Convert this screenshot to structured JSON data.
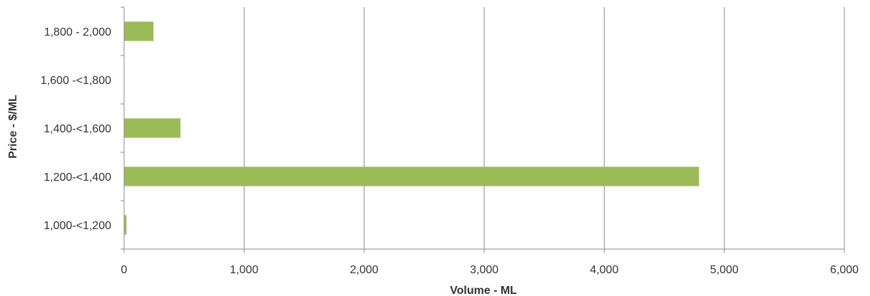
{
  "chart_data": {
    "type": "bar",
    "orientation": "horizontal",
    "title": "",
    "xlabel": "Volume - ML",
    "ylabel": "Price - $/ML",
    "categories": [
      "1,000-<1,200",
      "1,200-<1,400",
      "1,400-<1,600",
      "1,600 -<1,800",
      "1,800 - 2,000"
    ],
    "values": [
      20,
      4790,
      470,
      0,
      245
    ],
    "xlim": [
      0,
      6000
    ],
    "xticks": [
      0,
      1000,
      2000,
      3000,
      4000,
      5000,
      6000
    ],
    "xtick_labels": [
      "0",
      "1,000",
      "2,000",
      "3,000",
      "4,000",
      "5,000",
      "6,000"
    ],
    "grid": "vertical",
    "legend": "none",
    "bar_color": "#9BBB59",
    "grid_color": "#8C8C8C"
  }
}
